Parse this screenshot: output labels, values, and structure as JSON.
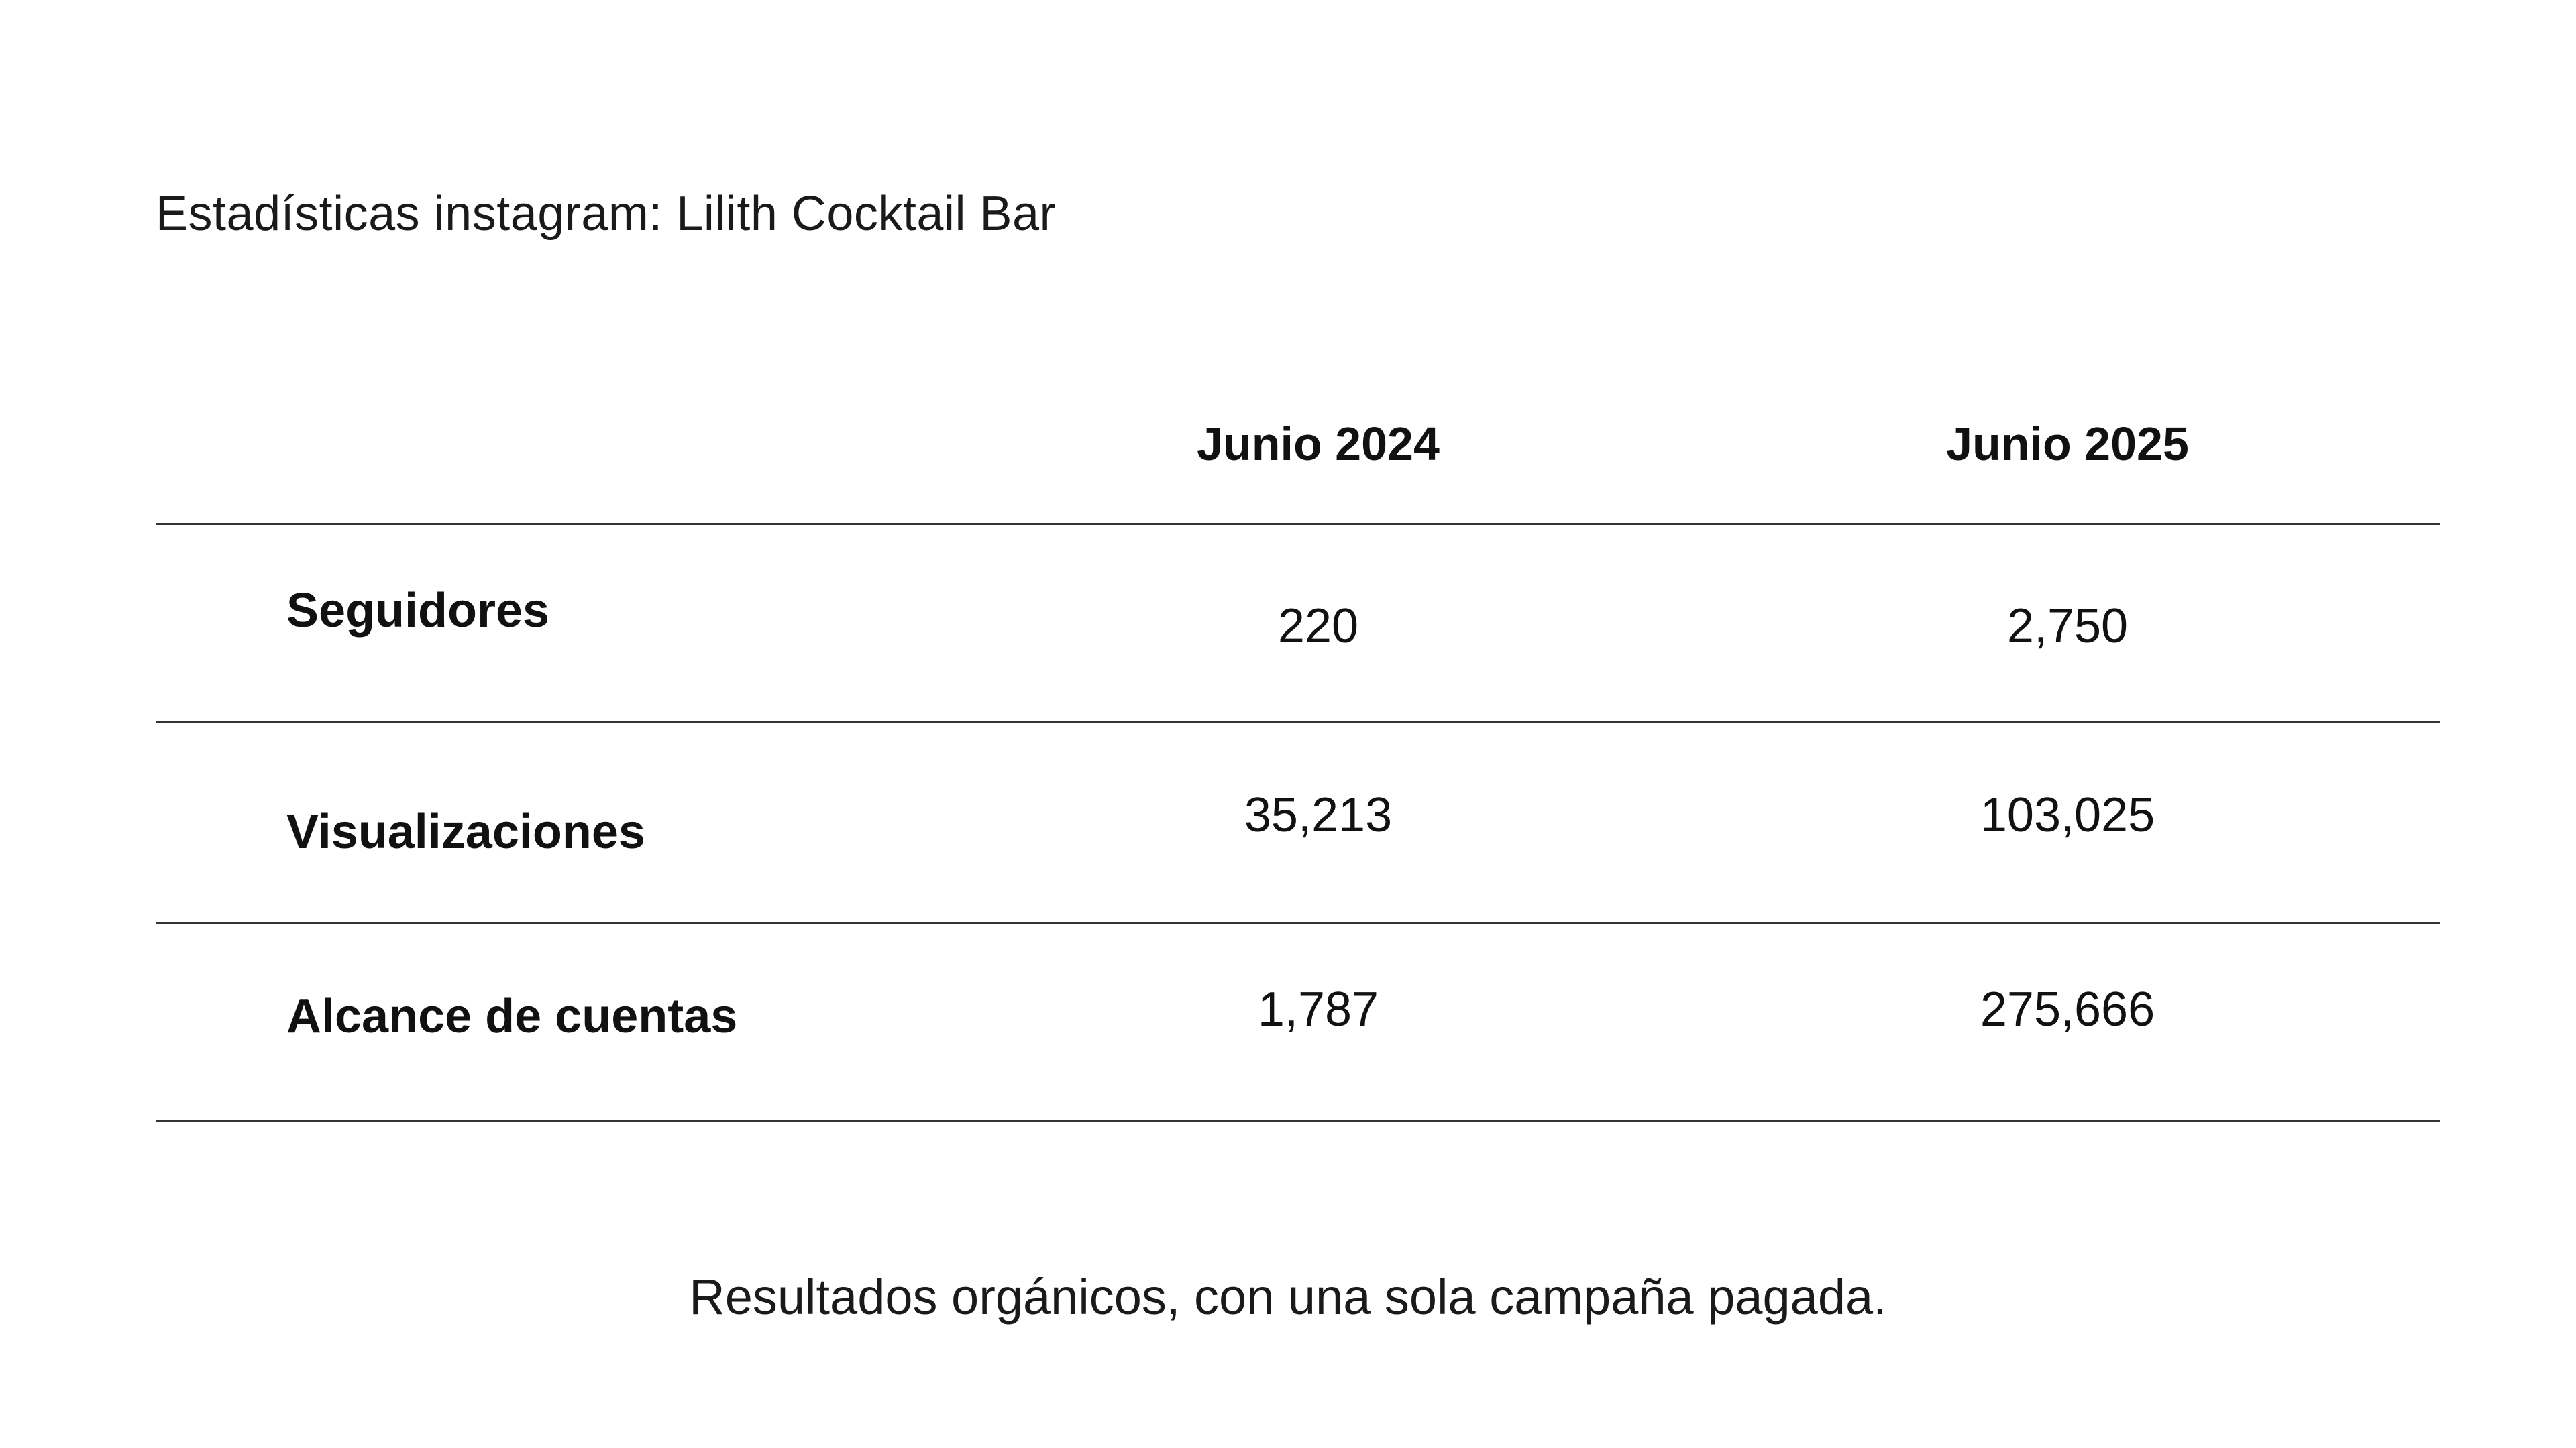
{
  "title": "Estadísticas instagram: Lilith Cocktail Bar",
  "table": {
    "columns": [
      "",
      "Junio 2024",
      "Junio 2025"
    ],
    "rows": [
      {
        "label": "Seguidores",
        "values": [
          "220",
          "2,750"
        ]
      },
      {
        "label": "Visualizaciones",
        "values": [
          "35,213",
          "103,025"
        ]
      },
      {
        "label": "Alcance de cuentas",
        "values": [
          "1,787",
          "275,666"
        ]
      }
    ]
  },
  "footer": "Resultados orgánicos, con una sola campaña pagada.",
  "chart_data": {
    "type": "table",
    "title": "Estadísticas instagram: Lilith Cocktail Bar",
    "columns": [
      "Junio 2024",
      "Junio 2025"
    ],
    "rows": [
      "Seguidores",
      "Visualizaciones",
      "Alcance de cuentas"
    ],
    "values": [
      [
        220,
        2750
      ],
      [
        35213,
        103025
      ],
      [
        1787,
        275666
      ]
    ]
  }
}
